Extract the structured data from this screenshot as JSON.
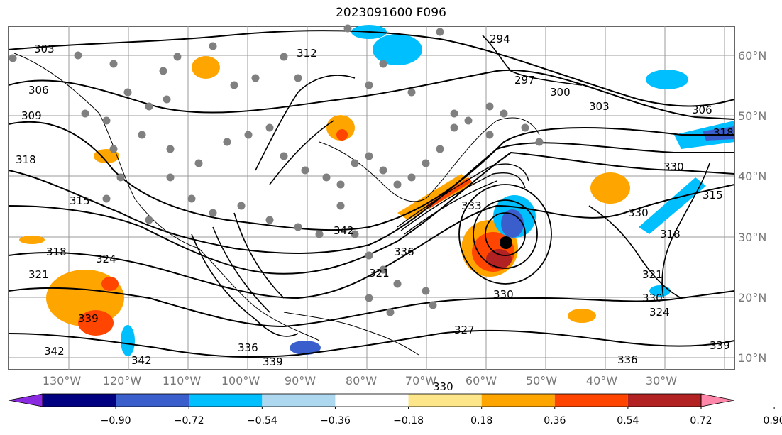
{
  "title": "2023091600 F096",
  "map": {
    "lon_labels": [
      "130°W",
      "120°W",
      "110°W",
      "100°W",
      "90°W",
      "80°W",
      "70°W",
      "60°W",
      "50°W",
      "40°W",
      "30°W"
    ],
    "lat_labels": [
      "60°N",
      "50°N",
      "40°N",
      "30°N",
      "20°N",
      "10°N"
    ],
    "contour_labels": [
      "303",
      "306",
      "309",
      "318",
      "315",
      "318",
      "321",
      "324",
      "339",
      "342",
      "336",
      "339",
      "342",
      "312",
      "294",
      "297",
      "300",
      "303",
      "306",
      "318",
      "330",
      "330",
      "315",
      "318",
      "321",
      "330",
      "324",
      "339",
      "336",
      "330",
      "327",
      "321",
      "330",
      "336",
      "333",
      "342"
    ],
    "storm_center_color": "#000000",
    "observation_marker_color": "#808080"
  },
  "colorbar": {
    "ticks": [
      "−0.90",
      "−0.72",
      "−0.54",
      "−0.36",
      "−0.18",
      "0.18",
      "0.36",
      "0.54",
      "0.72",
      "0.90"
    ],
    "colors": [
      "#8a2be2",
      "#000080",
      "#3a5fcd",
      "#00bfff",
      "#add8f0",
      "#ffffff",
      "#fde68a",
      "#ffa500",
      "#ff4500",
      "#b22222",
      "#ff88aa"
    ]
  }
}
